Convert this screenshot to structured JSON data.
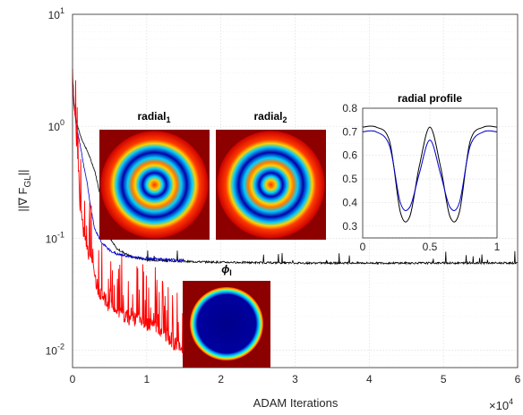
{
  "chart_data": [
    {
      "type": "line",
      "title": "",
      "xlabel": "ADAM Iterations",
      "ylabel": "||∇ F_GL||",
      "x_multiplier": "×10^4",
      "xlim": [
        0,
        6
      ],
      "ylim": [
        0.007,
        10
      ],
      "yscale": "log",
      "grid": true,
      "x_ticks": [
        "0",
        "1",
        "2",
        "3",
        "4",
        "5",
        "6"
      ],
      "y_ticks": [
        {
          "base": "10",
          "exp": "-2"
        },
        {
          "base": "10",
          "exp": "-1"
        },
        {
          "base": "10",
          "exp": "0"
        },
        {
          "base": "10",
          "exp": "1"
        }
      ],
      "series": [
        {
          "color": "#ff0000",
          "x": [
            0,
            0.02,
            0.04,
            0.06,
            0.08,
            0.1,
            0.13,
            0.16,
            0.2,
            0.25,
            0.3,
            0.35,
            0.4,
            0.5,
            0.6,
            0.7,
            0.8,
            0.9,
            1.0,
            1.1,
            1.2,
            1.3,
            1.4,
            1.5,
            1.5
          ],
          "y": [
            2.8,
            1.6,
            1.0,
            0.6,
            0.35,
            0.2,
            0.15,
            0.1,
            0.08,
            0.06,
            0.045,
            0.035,
            0.03,
            0.025,
            0.022,
            0.02,
            0.019,
            0.018,
            0.017,
            0.016,
            0.015,
            0.013,
            0.011,
            0.0095,
            0.0075
          ]
        },
        {
          "color": "#0000cc",
          "x": [
            0,
            0.02,
            0.05,
            0.1,
            0.15,
            0.2,
            0.25,
            0.3,
            0.4,
            0.5,
            0.6,
            0.8,
            1.0,
            1.2,
            1.4,
            1.5
          ],
          "y": [
            2.5,
            1.5,
            1.0,
            0.7,
            0.45,
            0.3,
            0.18,
            0.12,
            0.09,
            0.078,
            0.072,
            0.068,
            0.066,
            0.065,
            0.064,
            0.063
          ]
        },
        {
          "color": "#000000",
          "x": [
            0,
            0.02,
            0.05,
            0.1,
            0.15,
            0.2,
            0.3,
            0.4,
            0.5,
            0.6,
            0.8,
            1.0,
            1.5,
            2.0,
            3.0,
            4.0,
            5.0,
            6.0
          ],
          "y": [
            2.8,
            1.6,
            1.1,
            0.85,
            0.7,
            0.6,
            0.4,
            0.2,
            0.1,
            0.08,
            0.068,
            0.064,
            0.062,
            0.061,
            0.06,
            0.06,
            0.06,
            0.06
          ]
        }
      ]
    },
    {
      "type": "line",
      "title": "radial profile",
      "xlim": [
        0,
        1
      ],
      "ylim": [
        0.25,
        0.8
      ],
      "grid": true,
      "x_ticks": [
        "0",
        "0.5",
        "1"
      ],
      "y_ticks": [
        "0.3",
        "0.4",
        "0.5",
        "0.6",
        "0.7",
        "0.8"
      ],
      "series": [
        {
          "color": "#000000",
          "x": [
            0,
            0.1,
            0.2,
            0.28,
            0.35,
            0.42,
            0.5,
            0.58,
            0.65,
            0.72,
            0.8,
            0.9,
            1.0
          ],
          "y": [
            0.72,
            0.72,
            0.66,
            0.36,
            0.34,
            0.55,
            0.72,
            0.55,
            0.34,
            0.36,
            0.66,
            0.72,
            0.72
          ]
        },
        {
          "color": "#0000cc",
          "x": [
            0,
            0.1,
            0.2,
            0.28,
            0.35,
            0.42,
            0.5,
            0.58,
            0.65,
            0.72,
            0.8,
            0.9,
            1.0
          ],
          "y": [
            0.7,
            0.7,
            0.64,
            0.4,
            0.38,
            0.52,
            0.665,
            0.52,
            0.38,
            0.4,
            0.64,
            0.7,
            0.7
          ]
        }
      ]
    }
  ],
  "insets": {
    "radial1": {
      "label": "radial",
      "sub": "1"
    },
    "radial2": {
      "label": "radial",
      "sub": "2"
    },
    "phi": {
      "label": "ϕ",
      "sub": "I"
    }
  },
  "colors": {
    "background_field": "#8c0000",
    "ring": "#0000a0"
  }
}
